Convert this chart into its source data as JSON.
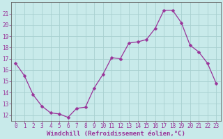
{
  "x": [
    0,
    1,
    2,
    3,
    4,
    5,
    6,
    7,
    8,
    9,
    10,
    11,
    12,
    13,
    14,
    15,
    16,
    17,
    18,
    19,
    20,
    21,
    22,
    23
  ],
  "y": [
    16.6,
    15.5,
    13.8,
    12.8,
    12.2,
    12.1,
    11.8,
    12.6,
    12.7,
    14.4,
    15.6,
    17.1,
    17.0,
    18.4,
    18.5,
    18.7,
    19.7,
    21.3,
    21.3,
    20.2,
    18.2,
    17.6,
    16.6,
    14.8
  ],
  "line_color": "#993399",
  "marker_color": "#993399",
  "bg_color": "#c8eaea",
  "grid_color": "#a8d0d0",
  "xlabel": "Windchill (Refroidissement éolien,°C)",
  "ylim": [
    11.5,
    22.0
  ],
  "yticks": [
    12,
    13,
    14,
    15,
    16,
    17,
    18,
    19,
    20,
    21
  ],
  "xticks": [
    0,
    1,
    2,
    3,
    4,
    5,
    6,
    7,
    8,
    9,
    10,
    11,
    12,
    13,
    14,
    15,
    16,
    17,
    18,
    19,
    20,
    21,
    22,
    23
  ],
  "tick_fontsize": 5.5,
  "xlabel_fontsize": 6.5,
  "line_width": 0.9,
  "marker_size": 2.5,
  "spine_color": "#888888"
}
